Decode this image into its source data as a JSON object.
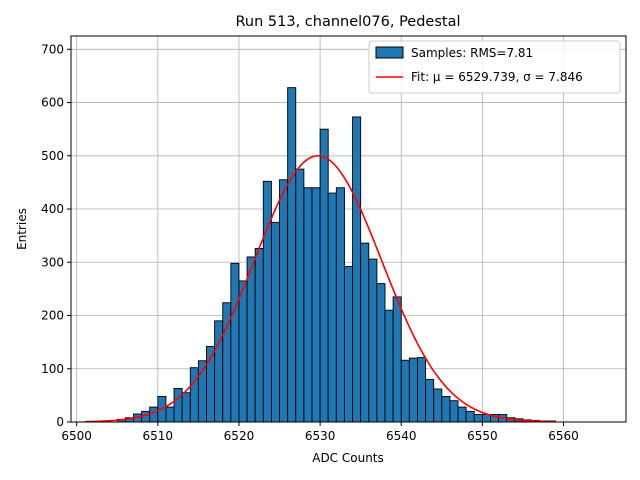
{
  "chart_data": {
    "type": "bar",
    "title": "Run 513, channel076, Pedestal",
    "xlabel": "ADC Counts",
    "ylabel": "Entries",
    "xlim": [
      6499.3,
      6567.7
    ],
    "ylim": [
      0,
      725
    ],
    "xticks": [
      6500,
      6510,
      6520,
      6530,
      6540,
      6550,
      6560
    ],
    "yticks": [
      0,
      100,
      200,
      300,
      400,
      500,
      600,
      700
    ],
    "grid": true,
    "legend_position": "top-right",
    "bin_start": 6501,
    "bin_width": 1,
    "histogram": {
      "name": "Samples: RMS=7.81",
      "color": "#1f77b4",
      "edge_color": "#000000",
      "counts": [
        0,
        0,
        0,
        0,
        5,
        8,
        15,
        20,
        28,
        48,
        28,
        63,
        55,
        102,
        115,
        142,
        190,
        224,
        298,
        265,
        310,
        326,
        452,
        375,
        455,
        628,
        475,
        440,
        440,
        550,
        430,
        440,
        292,
        573,
        336,
        306,
        260,
        210,
        235,
        116,
        120,
        121,
        80,
        62,
        48,
        40,
        28,
        20,
        14,
        14,
        14,
        14,
        8,
        6,
        4,
        3,
        2,
        2,
        0,
        0,
        0,
        0,
        0,
        0
      ]
    },
    "fit": {
      "name": "Fit: μ = 6529.739, σ = 7.846",
      "color": "#ff0000",
      "amplitude": 500,
      "mu": 6529.739,
      "sigma": 7.846,
      "x_range": [
        6501,
        6559
      ]
    }
  }
}
